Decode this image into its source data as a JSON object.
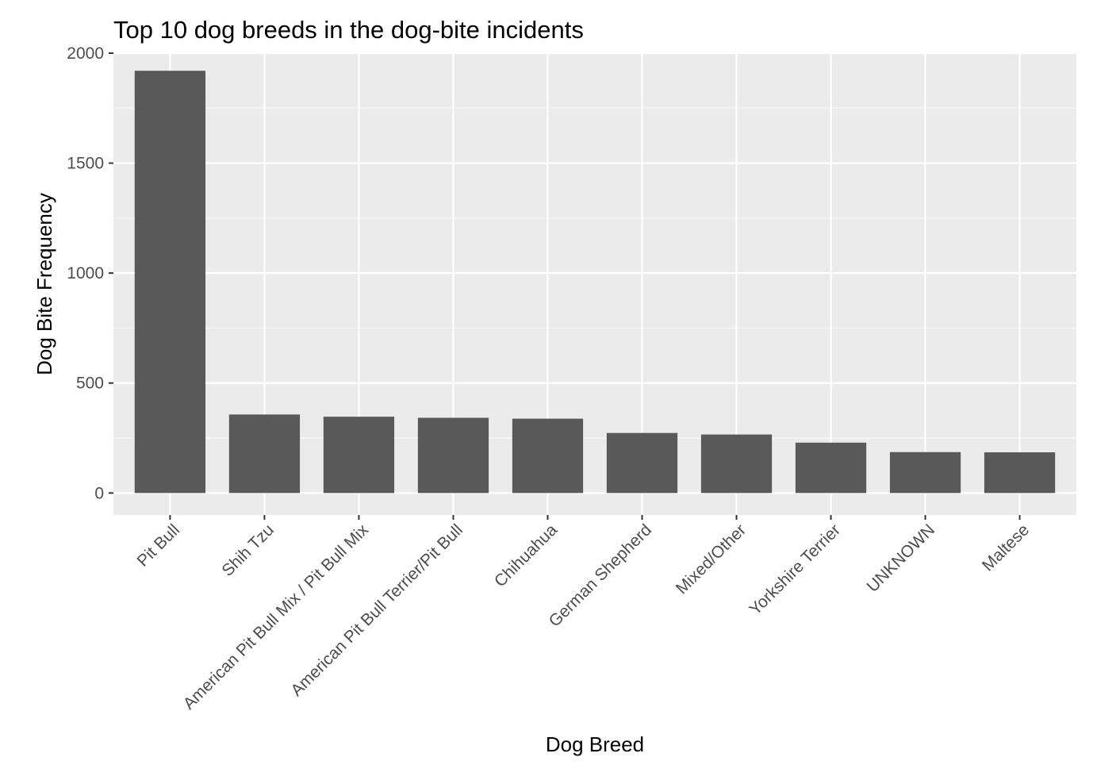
{
  "chart_data": {
    "type": "bar",
    "title": "Top 10 dog breeds in the dog-bite incidents",
    "xlabel": "Dog Breed",
    "ylabel": "Dog Bite Frequency",
    "categories": [
      "Pit Bull",
      "Shih Tzu",
      "American Pit Bull Mix / Pit Bull Mix",
      "American Pit Bull Terrier/Pit Bull",
      "Chihuahua",
      "German Shepherd",
      "Mixed/Other",
      "Yorkshire Terrier",
      "UNKNOWN",
      "Maltese"
    ],
    "values": [
      1920,
      357,
      347,
      342,
      338,
      273,
      266,
      229,
      186,
      185
    ],
    "ylim": [
      -100,
      2000
    ],
    "yticks": [
      0,
      500,
      1000,
      1500,
      2000
    ],
    "ytick_labels": [
      "0",
      "500",
      "1000",
      "1500",
      "2000"
    ],
    "grid": true,
    "legend": "none",
    "colors": {
      "bar": "#595959",
      "panel": "#ebebeb",
      "grid_major": "#ffffff",
      "grid_minor": "#f5f5f5",
      "tick_text": "#4d4d4d",
      "tick_mark": "#333333",
      "title_text": "#000000"
    }
  }
}
